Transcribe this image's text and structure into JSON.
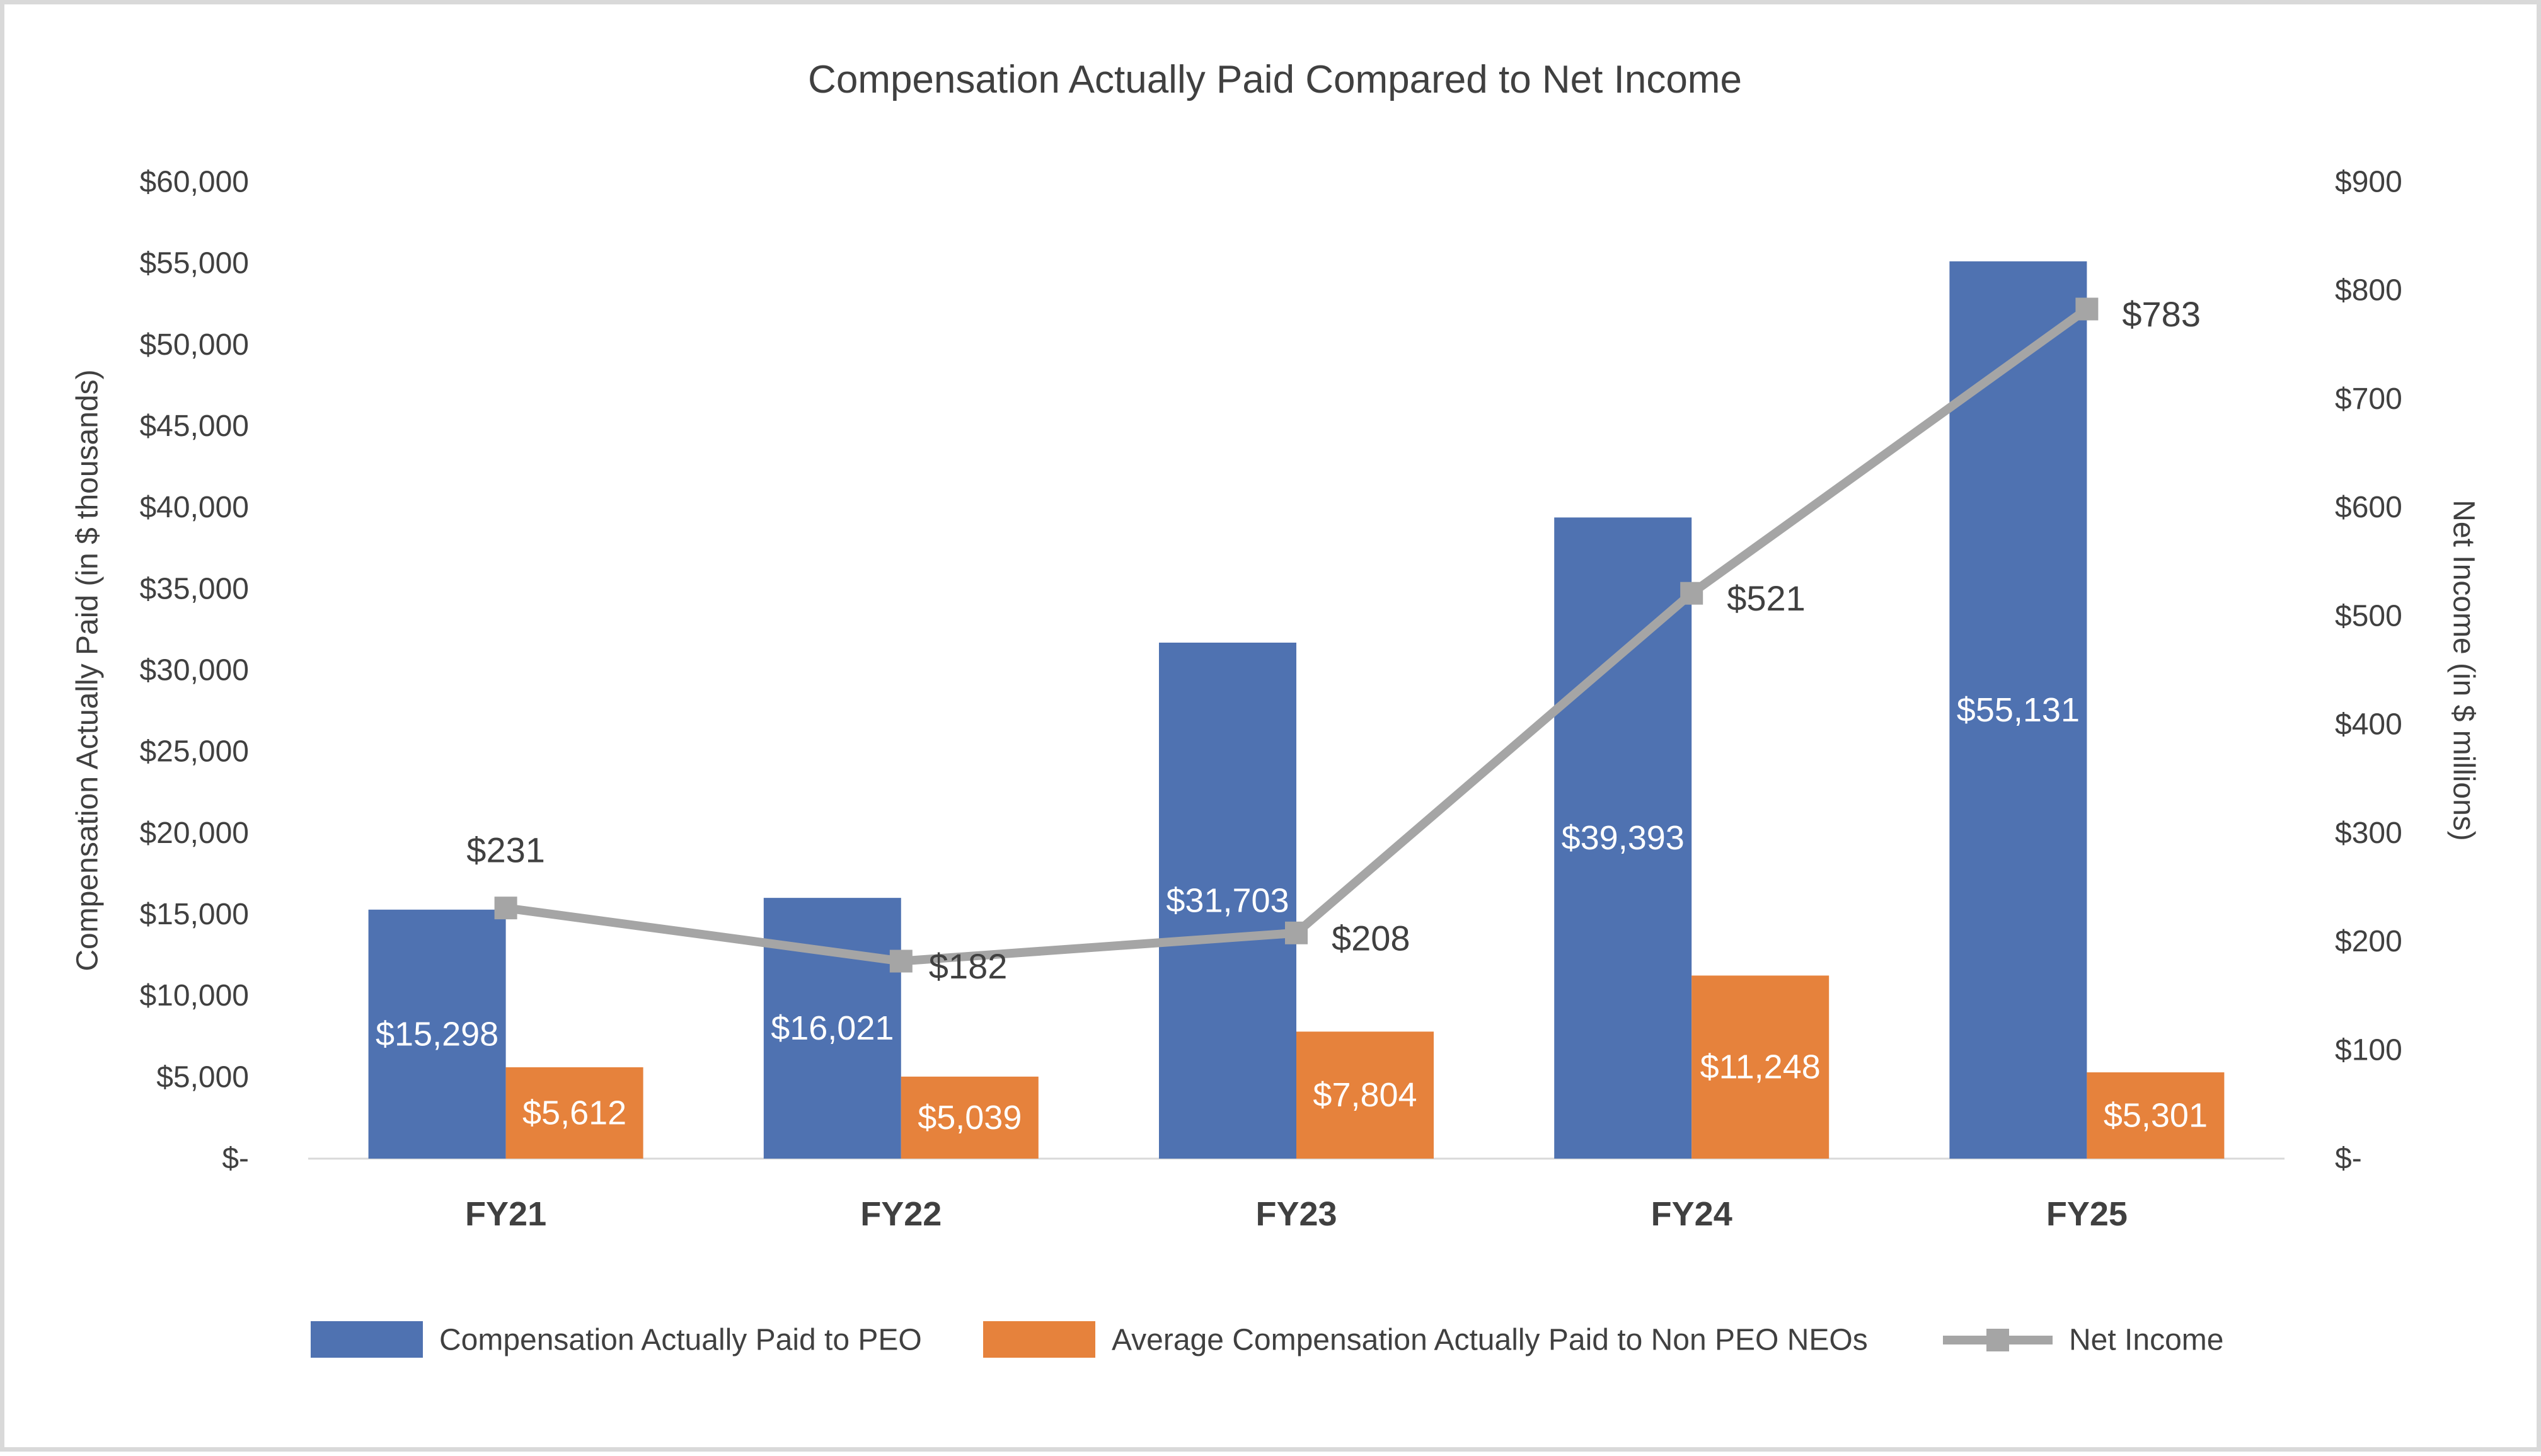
{
  "chart_data": {
    "type": "bar",
    "title": "Compensation Actually Paid Compared to Net Income",
    "categories": [
      "FY21",
      "FY22",
      "FY23",
      "FY24",
      "FY25"
    ],
    "series": [
      {
        "name": "Compensation Actually Paid to PEO",
        "type": "bar",
        "axis": "left",
        "color": "#4f72b1",
        "values": [
          15298,
          16021,
          31703,
          39393,
          55131
        ],
        "labels": [
          "$15,298",
          "$16,021",
          "$31,703",
          "$39,393",
          "$55,131"
        ]
      },
      {
        "name": "Average Compensation Actually Paid to Non PEO NEOs",
        "type": "bar",
        "axis": "left",
        "color": "#e6823c",
        "values": [
          5612,
          5039,
          7804,
          11248,
          5301
        ],
        "labels": [
          "$5,612",
          "$5,039",
          "$7,804",
          "$11,248",
          "$5,301"
        ]
      },
      {
        "name": "Net Income",
        "type": "line",
        "axis": "right",
        "color": "#a5a5a5",
        "values": [
          231,
          182,
          208,
          521,
          783
        ],
        "labels": [
          "$231",
          "$182",
          "$208",
          "$521",
          "$783"
        ]
      }
    ],
    "y_left": {
      "label": "Compensation Actually Paid (in $ thousands)",
      "ylim": [
        0,
        60000
      ],
      "ticks": [
        0,
        5000,
        10000,
        15000,
        20000,
        25000,
        30000,
        35000,
        40000,
        45000,
        50000,
        55000,
        60000
      ],
      "tick_labels": [
        "$-",
        "$5,000",
        "$10,000",
        "$15,000",
        "$20,000",
        "$25,000",
        "$30,000",
        "$35,000",
        "$40,000",
        "$45,000",
        "$50,000",
        "$55,000",
        "$60,000"
      ]
    },
    "y_right": {
      "label": "Net Income (in $ millions)",
      "ylim": [
        0,
        900
      ],
      "ticks": [
        0,
        100,
        200,
        300,
        400,
        500,
        600,
        700,
        800,
        900
      ],
      "tick_labels": [
        "$-",
        "$100",
        "$200",
        "$300",
        "$400",
        "$500",
        "$600",
        "$700",
        "$800",
        "$900"
      ]
    },
    "gridlines": false,
    "legend_position": "bottom"
  }
}
